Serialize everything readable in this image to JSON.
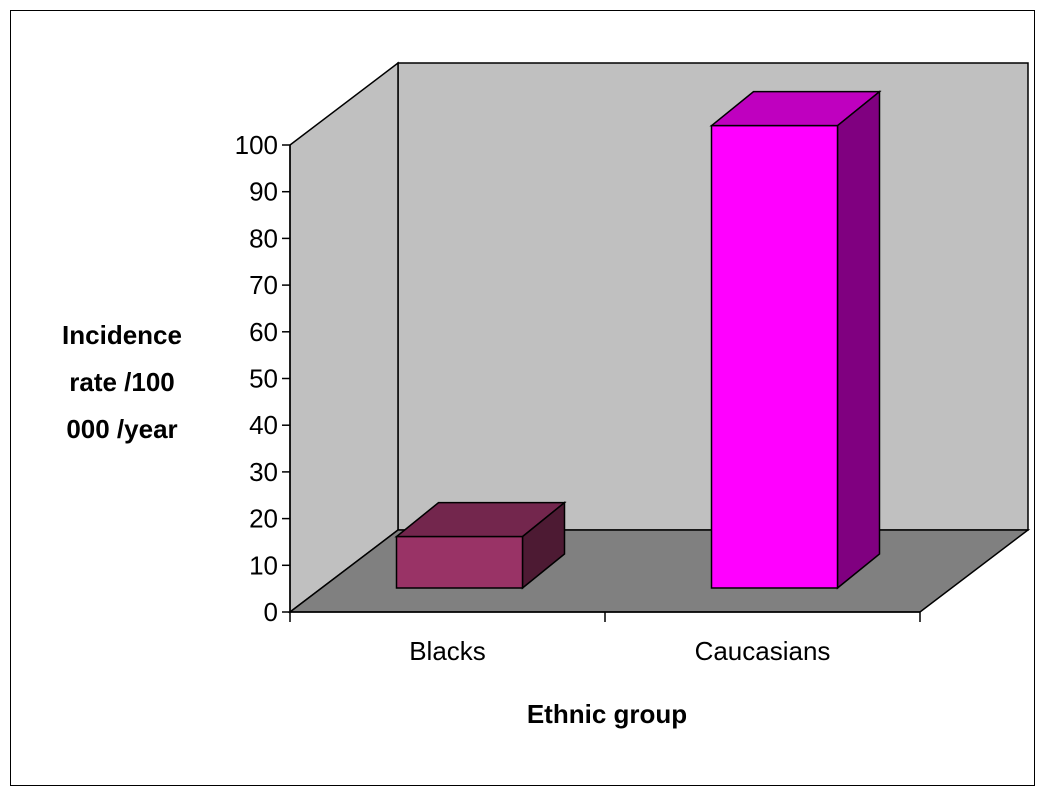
{
  "chart_data": {
    "type": "bar",
    "style": "3d-column",
    "title": "",
    "xlabel": "Ethnic group",
    "ylabel_lines": [
      "Incidence",
      "rate /100",
      "000 /year"
    ],
    "categories": [
      "Blacks",
      "Caucasians"
    ],
    "values": [
      11,
      99
    ],
    "ylim": [
      0,
      100
    ],
    "yticks": [
      0,
      10,
      20,
      30,
      40,
      50,
      60,
      70,
      80,
      90,
      100
    ],
    "grid": false,
    "legend": "none",
    "colors": {
      "bar_front": [
        "#993366",
        "#ff00ff"
      ],
      "bar_top": [
        "#73264d",
        "#bf00bf"
      ],
      "bar_side": [
        "#4d1a33",
        "#800080"
      ],
      "back_wall": "#c0c0c0",
      "side_wall": "#c0c0c0",
      "floor": "#808080"
    }
  }
}
